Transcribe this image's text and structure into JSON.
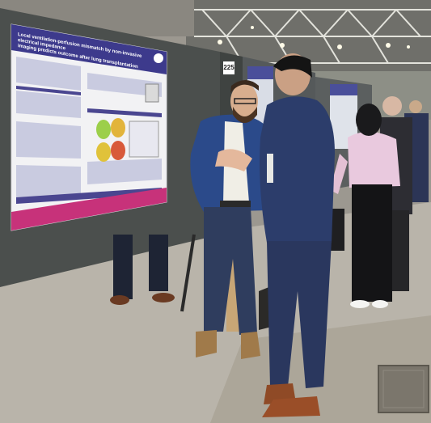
{
  "scene": {
    "poster": {
      "title_line_1": "Local ventilation-perfusion mismatch by non-invasive electrical impedance",
      "title_line_2": "imaging predicts outcome after lung transplantation",
      "board_number": "225"
    },
    "colors": {
      "floor": "#b9b4aa",
      "board": "#4a4e4c",
      "ceiling_truss": "#dcdcd6",
      "poster_purple": "#3d3a8c",
      "suit_navy": "#2c3d6b",
      "jacket_blue": "#2b4a8a"
    }
  }
}
